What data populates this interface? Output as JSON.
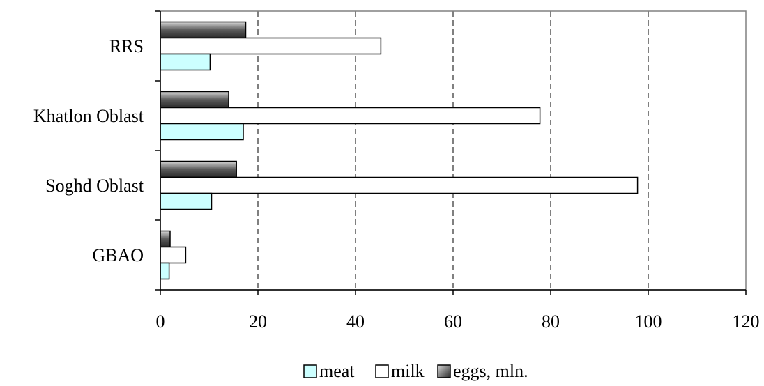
{
  "chart_data": {
    "type": "bar",
    "orientation": "horizontal",
    "categories": [
      "GBAO",
      "Soghd Oblast",
      "Khatlon Oblast",
      "RRS"
    ],
    "series": [
      {
        "name": "meat",
        "values": [
          1.8,
          10.5,
          17.0,
          10.2
        ],
        "color": "#ccffff"
      },
      {
        "name": "milk",
        "values": [
          5.2,
          97.8,
          77.8,
          45.2
        ],
        "color": "#ffffff"
      },
      {
        "name": "eggs, mln.",
        "values": [
          2.0,
          15.6,
          14.0,
          17.5
        ],
        "color": "#555555"
      }
    ],
    "title": "",
    "xlabel": "",
    "ylabel": "",
    "xlim": [
      0,
      120
    ],
    "xticks": [
      "0",
      "20",
      "40",
      "60",
      "80",
      "100",
      "120"
    ],
    "gridlines": "vertical-dashed",
    "legend_position": "bottom"
  }
}
